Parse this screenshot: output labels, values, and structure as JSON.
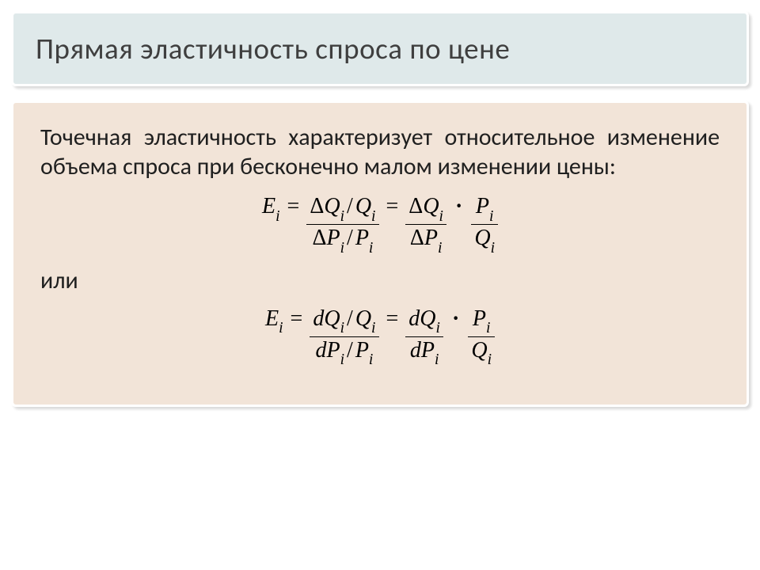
{
  "slide": {
    "title": "Прямая эластичность спроса по цене",
    "paragraph": "Точечная эластичность характеризует относительное изменение объема спроса при бесконечно малом изменении цены:",
    "or_label": "или"
  },
  "colors": {
    "title_bg": "#dfe9ea",
    "title_border": "#ffffff",
    "title_text": "#3f3f3f",
    "content_bg": "#f2e4d8",
    "content_border": "#ffffff",
    "body_text": "#1f1f1f",
    "formula_text": "#000000",
    "page_bg": "#ffffff"
  },
  "typography": {
    "title_fontsize": 37,
    "body_fontsize": 30,
    "or_fontsize": 30,
    "formula_fontsize": 28,
    "title_weight": "400"
  },
  "layout": {
    "title_border_width": 3,
    "content_border_width": 3,
    "box_radius": 6
  },
  "formulas": {
    "formula1": {
      "lhs_base": "E",
      "lhs_sub": "i",
      "diff_symbol": "Δ",
      "var_Q": "Q",
      "var_P": "P",
      "sub": "i"
    },
    "formula2": {
      "lhs_base": "E",
      "lhs_sub": "i",
      "diff_symbol": "d",
      "var_Q": "Q",
      "var_P": "P",
      "sub": "i"
    }
  }
}
